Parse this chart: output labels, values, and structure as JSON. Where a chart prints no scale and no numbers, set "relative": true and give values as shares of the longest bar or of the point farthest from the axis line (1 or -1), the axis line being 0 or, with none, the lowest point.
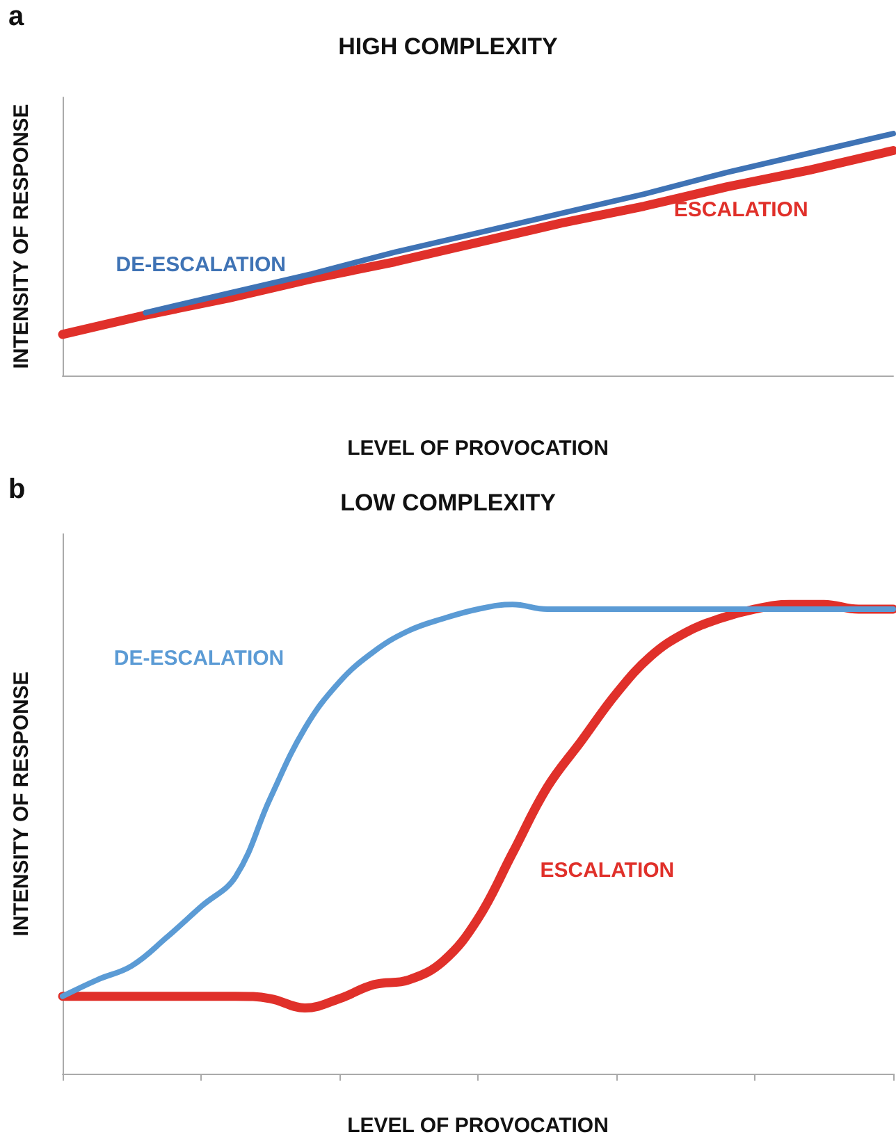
{
  "chart_data": [
    {
      "type": "line",
      "title": "HIGH COMPLEXITY",
      "xlabel": "LEVEL OF PROVOCATION",
      "ylabel": "INTENSITY OF RESPONSE",
      "annotations": [
        "a"
      ],
      "relative": true,
      "legend": false,
      "marker": "none",
      "categories": [
        null,
        null,
        null,
        null,
        null,
        null,
        null,
        null,
        null,
        null,
        null
      ],
      "series": [
        {
          "name": "DE-ESCALATION",
          "color": "#3f73b5",
          "values": [
            null,
            0.26,
            0.34,
            0.42,
            0.51,
            0.59,
            0.67,
            0.75,
            0.84,
            0.92,
            1.0
          ]
        },
        {
          "name": "ESCALATION",
          "color": "#e0302a",
          "values": [
            0.17,
            0.25,
            0.32,
            0.4,
            0.47,
            0.55,
            0.63,
            0.7,
            0.78,
            0.85,
            0.93
          ]
        }
      ]
    },
    {
      "type": "line",
      "title": "LOW COMPLEXITY",
      "xlabel": "LEVEL OF PROVOCATION",
      "ylabel": "INTENSITY OF RESPONSE",
      "annotations": [
        "b"
      ],
      "relative": true,
      "legend": false,
      "marker": "none",
      "categories": [
        null,
        null,
        null,
        null,
        null,
        null,
        null,
        null,
        null,
        null,
        null,
        null,
        null,
        null,
        null,
        null,
        null,
        null,
        null,
        null,
        null,
        null,
        null,
        null,
        null
      ],
      "series": [
        {
          "name": "DE-ESCALATION",
          "color": "#5b9bd5",
          "values": [
            0.165,
            0.2,
            0.23,
            0.29,
            0.356,
            0.42,
            0.587,
            0.736,
            0.835,
            0.9,
            0.944,
            0.97,
            0.99,
            1.0,
            0.99,
            0.99,
            0.99,
            0.99,
            0.99,
            0.99,
            0.99,
            0.99,
            0.99,
            0.99,
            0.99
          ]
        },
        {
          "name": "ESCALATION",
          "color": "#e0302a",
          "values": [
            0.165,
            0.165,
            0.165,
            0.165,
            0.165,
            0.165,
            0.16,
            0.14,
            0.16,
            0.19,
            0.2,
            0.24,
            0.33,
            0.47,
            0.61,
            0.71,
            0.81,
            0.89,
            0.94,
            0.97,
            0.99,
            1.0,
            1.0,
            0.99,
            0.99
          ]
        }
      ]
    }
  ]
}
